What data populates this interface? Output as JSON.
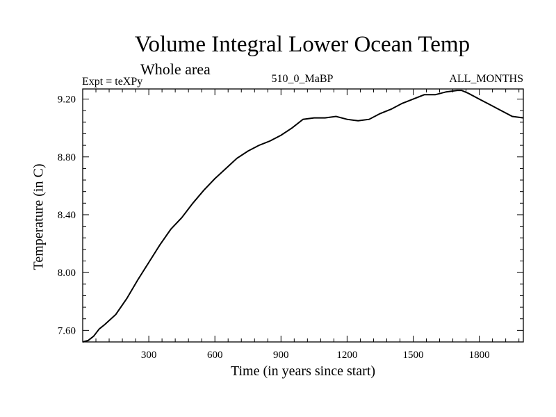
{
  "chart_data": {
    "type": "line",
    "title": "Volume Integral Lower Ocean Temp",
    "subtitle": "Whole area",
    "annotations": {
      "left": "Expt = teXPy",
      "center": "510_0_MaBP",
      "right": "ALL_MONTHS"
    },
    "xlabel": "Time (in years since start)",
    "ylabel": "Temperature (in C)",
    "xlim": [
      0,
      2000
    ],
    "ylim": [
      7.52,
      9.27
    ],
    "x_ticks": [
      300,
      600,
      900,
      1200,
      1500,
      1800
    ],
    "x_tick_labels": [
      "300",
      "600",
      "900",
      "1200",
      "1500",
      "1800"
    ],
    "y_ticks": [
      7.6,
      8.0,
      8.4,
      8.8,
      9.2
    ],
    "y_tick_labels": [
      "7.60",
      "8.00",
      "8.40",
      "8.80",
      "9.20"
    ],
    "grid": false,
    "legend": "none",
    "line_color": "#000000",
    "series": [
      {
        "x": [
          0,
          25,
          50,
          75,
          100,
          150,
          200,
          250,
          300,
          350,
          400,
          450,
          500,
          550,
          600,
          650,
          700,
          750,
          800,
          850,
          900,
          950,
          1000,
          1050,
          1100,
          1150,
          1200,
          1250,
          1300,
          1350,
          1400,
          1450,
          1500,
          1550,
          1600,
          1650,
          1700,
          1720,
          1750,
          1800,
          1850,
          1900,
          1950,
          2000
        ],
        "y": [
          7.52,
          7.53,
          7.56,
          7.61,
          7.64,
          7.71,
          7.82,
          7.95,
          8.07,
          8.19,
          8.3,
          8.38,
          8.48,
          8.57,
          8.65,
          8.72,
          8.79,
          8.84,
          8.88,
          8.91,
          8.95,
          9.0,
          9.06,
          9.07,
          9.07,
          9.08,
          9.06,
          9.05,
          9.06,
          9.1,
          9.13,
          9.17,
          9.2,
          9.23,
          9.23,
          9.25,
          9.26,
          9.26,
          9.24,
          9.2,
          9.16,
          9.12,
          9.08,
          9.07
        ]
      }
    ]
  }
}
